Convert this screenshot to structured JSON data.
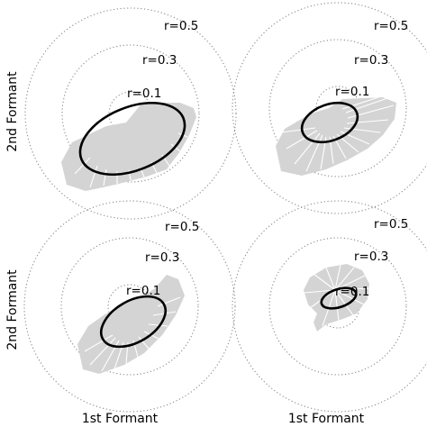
{
  "figure": {
    "x_axis_label": "1st Formant",
    "y_axis_label": "2nd Formant",
    "radius_labels": [
      "r=0.5",
      "r=0.3",
      "r=0.1"
    ],
    "panels": [
      {
        "id": "top-left"
      },
      {
        "id": "top-right"
      },
      {
        "id": "bottom-left"
      },
      {
        "id": "bottom-right"
      }
    ]
  }
}
